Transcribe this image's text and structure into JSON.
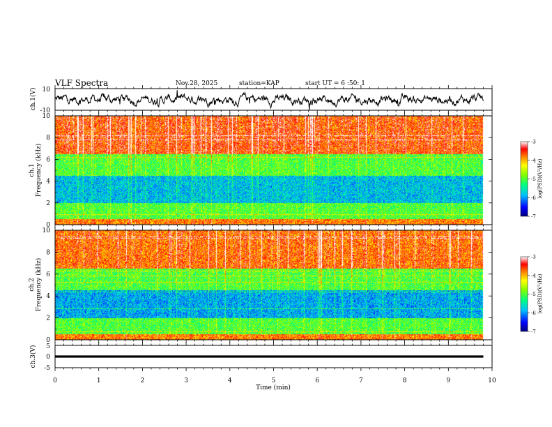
{
  "header": {
    "title": "VLF Spectra",
    "date": "Nov.28, 2025",
    "station": "station=KAP",
    "start": "start UT =  6 :50: 1"
  },
  "chart_data": [
    {
      "type": "line",
      "panel": "ch1-waveform",
      "ylabel": "ch.1(V)",
      "ylim": [
        -10,
        10
      ],
      "yticks": [
        "10",
        "-10"
      ],
      "xlim": [
        0,
        9.8
      ],
      "baseline_level": 0,
      "approx_amplitude": 4
    },
    {
      "type": "heatmap",
      "panel": "ch1-spectrogram",
      "ylabel": "ch.1\nFrequency (kHz)",
      "ylabel_lines": [
        "ch.1",
        "Frequency (kHz)"
      ],
      "ylim": [
        0,
        10
      ],
      "yticks": [
        "0",
        "2",
        "4",
        "6",
        "8",
        "10"
      ],
      "xlim": [
        0,
        9.8
      ],
      "colorbar": {
        "label": "log(PSD)(V²/Hz)",
        "range": [
          -7,
          -3
        ],
        "ticks": [
          "-3",
          "-4",
          "-5",
          "-6",
          "-7"
        ]
      },
      "band_levels": [
        {
          "from_khz": 0,
          "to_khz": 0.5,
          "level": -3.8
        },
        {
          "from_khz": 0.5,
          "to_khz": 2.0,
          "level": -5.0
        },
        {
          "from_khz": 2.0,
          "to_khz": 4.5,
          "level": -5.8
        },
        {
          "from_khz": 4.5,
          "to_khz": 6.5,
          "level": -5.0
        },
        {
          "from_khz": 6.5,
          "to_khz": 10,
          "level": -3.6
        }
      ]
    },
    {
      "type": "heatmap",
      "panel": "ch2-spectrogram",
      "ylabel": "ch.2\nFrequency (kHz)",
      "ylabel_lines": [
        "ch.2",
        "Frequency (kHz)"
      ],
      "ylim": [
        0,
        10
      ],
      "yticks": [
        "0",
        "2",
        "4",
        "6",
        "8",
        "10"
      ],
      "xlim": [
        0,
        9.8
      ],
      "colorbar": {
        "label": "log(PSD)(V²/Hz)",
        "range": [
          -7,
          -3
        ],
        "ticks": [
          "-3",
          "-4",
          "-5",
          "-6",
          "-7"
        ]
      },
      "band_levels": [
        {
          "from_khz": 0,
          "to_khz": 0.5,
          "level": -3.8
        },
        {
          "from_khz": 0.5,
          "to_khz": 2.0,
          "level": -5.0
        },
        {
          "from_khz": 2.0,
          "to_khz": 4.5,
          "level": -5.9
        },
        {
          "from_khz": 4.5,
          "to_khz": 6.5,
          "level": -5.0
        },
        {
          "from_khz": 6.5,
          "to_khz": 10,
          "level": -3.7
        }
      ]
    },
    {
      "type": "line",
      "panel": "ch3-waveform",
      "ylabel": "ch.3(V)",
      "ylim": [
        -5,
        5
      ],
      "yticks": [
        "5",
        "0",
        "-5"
      ],
      "xlim": [
        0,
        9.8
      ],
      "baseline_level": 0,
      "approx_amplitude": 0.5
    }
  ],
  "xaxis": {
    "label": "Time (min)",
    "range": [
      0,
      10
    ],
    "ticks": [
      "0",
      "1",
      "2",
      "3",
      "4",
      "5",
      "6",
      "7",
      "8",
      "9",
      "10"
    ]
  },
  "colors": {
    "trace": "#000000",
    "colormap": [
      "#000080",
      "#0000ff",
      "#00bfff",
      "#00ff7f",
      "#7fff00",
      "#ffff00",
      "#ff7f00",
      "#ff0000",
      "#ffffff"
    ]
  }
}
